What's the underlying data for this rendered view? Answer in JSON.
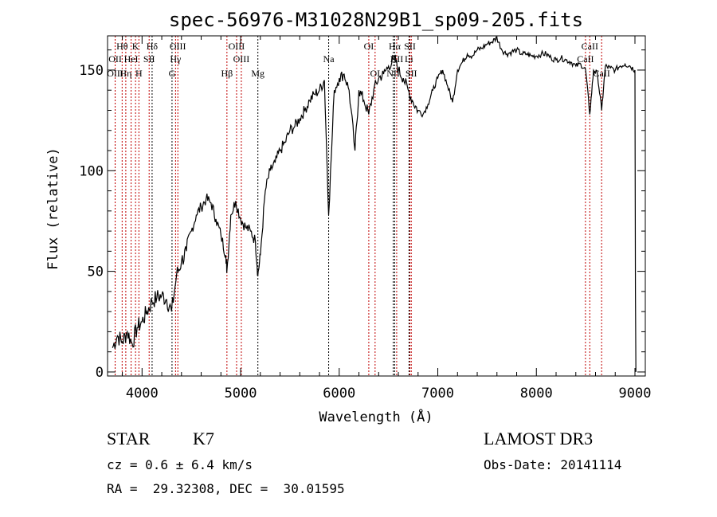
{
  "chart_data": {
    "type": "line",
    "title": "spec-56976-M31028N29B1_sp09-205.fits",
    "xlabel": "Wavelength (Å)",
    "ylabel": "Flux (relative)",
    "xlim": [
      3650,
      9105
    ],
    "ylim": [
      -2,
      167
    ],
    "xticks": [
      4000,
      5000,
      6000,
      7000,
      8000,
      9000
    ],
    "yticks": [
      0,
      50,
      100,
      150
    ],
    "grid": false,
    "series": [
      {
        "name": "flux",
        "x": [
          3700,
          3750,
          3800,
          3850,
          3900,
          3950,
          4000,
          4050,
          4100,
          4150,
          4200,
          4250,
          4300,
          4350,
          4400,
          4450,
          4500,
          4550,
          4600,
          4650,
          4700,
          4750,
          4800,
          4850,
          4861,
          4900,
          4950,
          5000,
          5050,
          5100,
          5150,
          5175,
          5200,
          5250,
          5300,
          5350,
          5400,
          5450,
          5500,
          5550,
          5600,
          5650,
          5700,
          5750,
          5800,
          5850,
          5893,
          5950,
          6000,
          6050,
          6100,
          6160,
          6200,
          6250,
          6300,
          6350,
          6400,
          6450,
          6500,
          6563,
          6600,
          6650,
          6700,
          6750,
          6800,
          6850,
          6900,
          6950,
          7000,
          7050,
          7100,
          7150,
          7200,
          7250,
          7300,
          7350,
          7400,
          7450,
          7500,
          7550,
          7600,
          7650,
          7700,
          7750,
          7800,
          7850,
          7900,
          7950,
          8000,
          8050,
          8100,
          8150,
          8200,
          8250,
          8300,
          8350,
          8400,
          8450,
          8500,
          8542,
          8580,
          8620,
          8662,
          8700,
          8750,
          8800,
          8850,
          8900,
          8950,
          9000,
          9005,
          9010
        ],
        "y": [
          12,
          18,
          15,
          20,
          14,
          22,
          25,
          30,
          35,
          37,
          38,
          36,
          30,
          48,
          55,
          60,
          70,
          78,
          82,
          86,
          84,
          76,
          68,
          58,
          50,
          78,
          85,
          76,
          72,
          70,
          65,
          48,
          58,
          90,
          100,
          104,
          110,
          114,
          120,
          122,
          126,
          130,
          135,
          138,
          140,
          145,
          78,
          140,
          146,
          148,
          140,
          110,
          140,
          135,
          128,
          140,
          146,
          148,
          152,
          156,
          150,
          146,
          140,
          134,
          130,
          128,
          133,
          140,
          146,
          150,
          142,
          134,
          150,
          154,
          158,
          157,
          160,
          161,
          163,
          164,
          166,
          160,
          158,
          159,
          160,
          158,
          158,
          157,
          157,
          158,
          158,
          156,
          155,
          156,
          155,
          154,
          152,
          153,
          150,
          128,
          150,
          148,
          130,
          152,
          151,
          150,
          152,
          153,
          152,
          150,
          40,
          0
        ]
      }
    ],
    "lines": [
      {
        "label": "Hθ",
        "wavelength": 3798,
        "row": 1,
        "color": "red"
      },
      {
        "label": "K",
        "wavelength": 3934,
        "row": 1,
        "color": "red"
      },
      {
        "label": "Hδ",
        "wavelength": 4102,
        "row": 1,
        "color": "black"
      },
      {
        "label": "OIII",
        "wavelength": 4363,
        "row": 1,
        "color": "red"
      },
      {
        "label": "OIII",
        "wavelength": 4959,
        "row": 1,
        "color": "red"
      },
      {
        "label": "OI",
        "wavelength": 6300,
        "row": 1,
        "color": "red"
      },
      {
        "label": "Hα",
        "wavelength": 6563,
        "row": 1,
        "color": "black"
      },
      {
        "label": "SII",
        "wavelength": 6717,
        "row": 1,
        "color": "red"
      },
      {
        "label": "CaII",
        "wavelength": 8542,
        "row": 1,
        "color": "red"
      },
      {
        "label": "OII",
        "wavelength": 3727,
        "row": 2,
        "color": "red"
      },
      {
        "label": "HeI",
        "wavelength": 3889,
        "row": 2,
        "color": "red"
      },
      {
        "label": "SII",
        "wavelength": 4072,
        "row": 2,
        "color": "red"
      },
      {
        "label": "Hγ",
        "wavelength": 4340,
        "row": 2,
        "color": "red"
      },
      {
        "label": "OIII",
        "wavelength": 5007,
        "row": 2,
        "color": "red"
      },
      {
        "label": "Na",
        "wavelength": 5893,
        "row": 2,
        "color": "black"
      },
      {
        "label": "NII",
        "wavelength": 6583,
        "row": 2,
        "color": "red"
      },
      {
        "label": "Li",
        "wavelength": 6708,
        "row": 2,
        "color": "black"
      },
      {
        "label": "CaII",
        "wavelength": 8498,
        "row": 2,
        "color": "red"
      },
      {
        "label": "OIII",
        "wavelength": 3727,
        "row": 3,
        "color": "red"
      },
      {
        "label": "Hη",
        "wavelength": 3835,
        "row": 3,
        "color": "red"
      },
      {
        "label": "H",
        "wavelength": 3968,
        "row": 3,
        "color": "red"
      },
      {
        "label": "G",
        "wavelength": 4304,
        "row": 3,
        "color": "black"
      },
      {
        "label": "Hβ",
        "wavelength": 4861,
        "row": 3,
        "color": "red"
      },
      {
        "label": "Mg",
        "wavelength": 5175,
        "row": 3,
        "color": "black"
      },
      {
        "label": "OI",
        "wavelength": 6364,
        "row": 3,
        "color": "red"
      },
      {
        "label": "NII",
        "wavelength": 6548,
        "row": 3,
        "color": "black"
      },
      {
        "label": "SII",
        "wavelength": 6731,
        "row": 3,
        "color": "red"
      },
      {
        "label": "CaII",
        "wavelength": 8662,
        "row": 3,
        "color": "red"
      }
    ]
  },
  "info": {
    "class": "STAR",
    "subclass": "K7",
    "cz": "cz = 0.6 ± 6.4 km/s",
    "radec": "RA =  29.32308, DEC =  30.01595",
    "survey": "LAMOST DR3",
    "obsdate": "Obs-Date: 20141114"
  }
}
